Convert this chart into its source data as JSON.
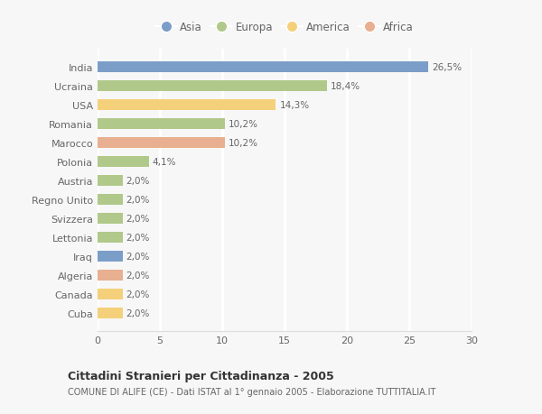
{
  "countries": [
    "India",
    "Ucraina",
    "USA",
    "Romania",
    "Marocco",
    "Polonia",
    "Austria",
    "Regno Unito",
    "Svizzera",
    "Lettonia",
    "Iraq",
    "Algeria",
    "Canada",
    "Cuba"
  ],
  "values": [
    26.5,
    18.4,
    14.3,
    10.2,
    10.2,
    4.1,
    2.0,
    2.0,
    2.0,
    2.0,
    2.0,
    2.0,
    2.0,
    2.0
  ],
  "labels": [
    "26,5%",
    "18,4%",
    "14,3%",
    "10,2%",
    "10,2%",
    "4,1%",
    "2,0%",
    "2,0%",
    "2,0%",
    "2,0%",
    "2,0%",
    "2,0%",
    "2,0%",
    "2,0%"
  ],
  "colors": [
    "#7b9ec9",
    "#b0c98a",
    "#f5d07a",
    "#b0c98a",
    "#e8b090",
    "#b0c98a",
    "#b0c98a",
    "#b0c98a",
    "#b0c98a",
    "#b0c98a",
    "#7b9ec9",
    "#e8b090",
    "#f5d07a",
    "#f5d07a"
  ],
  "legend_labels": [
    "Asia",
    "Europa",
    "America",
    "Africa"
  ],
  "legend_colors": [
    "#7b9ec9",
    "#b0c98a",
    "#f5d07a",
    "#e8b090"
  ],
  "title": "Cittadini Stranieri per Cittadinanza - 2005",
  "subtitle": "COMUNE DI ALIFE (CE) - Dati ISTAT al 1° gennaio 2005 - Elaborazione TUTTITALIA.IT",
  "xlim": [
    0,
    30
  ],
  "xticks": [
    0,
    5,
    10,
    15,
    20,
    25,
    30
  ],
  "background_color": "#f7f7f7",
  "grid_color": "#ffffff",
  "bar_height": 0.55
}
